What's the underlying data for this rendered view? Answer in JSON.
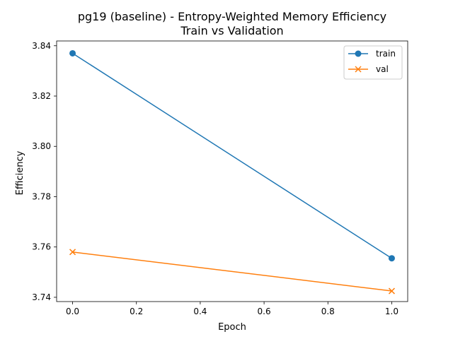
{
  "chart_data": {
    "type": "line",
    "title": "pg19 (baseline) - Entropy-Weighted Memory Efficiency",
    "subtitle": "Train vs Validation",
    "xlabel": "Epoch",
    "ylabel": "Efficiency",
    "xlim": [
      -0.05,
      1.05
    ],
    "ylim": [
      3.7383,
      3.8419
    ],
    "xticks": [
      0.0,
      0.2,
      0.4,
      0.6,
      0.8,
      1.0
    ],
    "xtick_labels": [
      "0.0",
      "0.2",
      "0.4",
      "0.6",
      "0.8",
      "1.0"
    ],
    "yticks": [
      3.74,
      3.76,
      3.78,
      3.8,
      3.82,
      3.84
    ],
    "ytick_labels": [
      "3.74",
      "3.76",
      "3.78",
      "3.80",
      "3.82",
      "3.84"
    ],
    "grid": false,
    "legend_position": "top-right",
    "x": [
      0,
      1
    ],
    "series": [
      {
        "name": "train",
        "values": [
          3.837,
          3.7555
        ],
        "color": "#1f77b4",
        "marker": "circle"
      },
      {
        "name": "val",
        "values": [
          3.758,
          3.7425
        ],
        "color": "#ff7f0e",
        "marker": "x"
      }
    ]
  }
}
